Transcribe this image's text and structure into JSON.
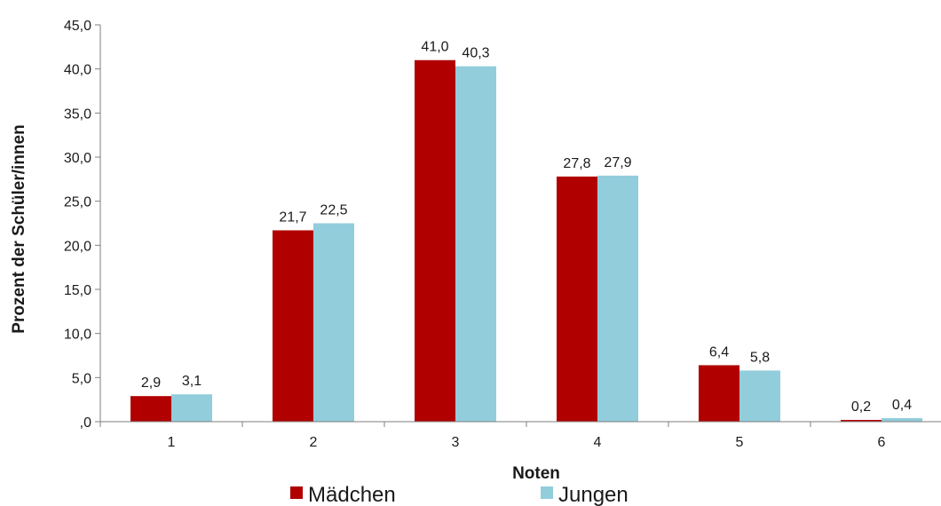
{
  "chart_data": {
    "type": "bar",
    "xlabel": "Noten",
    "ylabel": "Prozent der Schüler/innen",
    "categories": [
      "1",
      "2",
      "3",
      "4",
      "5",
      "6"
    ],
    "ylim": [
      0,
      45
    ],
    "ytick_labels": [
      ",0",
      "5,0",
      "10,0",
      "15,0",
      "20,0",
      "25,0",
      "30,0",
      "35,0",
      "40,0",
      "45,0"
    ],
    "legend_position": "bottom",
    "grid": false,
    "series": [
      {
        "name": "Mädchen",
        "color": "#B00000",
        "values": [
          2.9,
          21.7,
          41.0,
          27.8,
          6.4,
          0.2
        ],
        "labels": [
          "2,9",
          "21,7",
          "41,0",
          "27,8",
          "6,4",
          "0,2"
        ]
      },
      {
        "name": "Jungen",
        "color": "#92CDDC",
        "values": [
          3.1,
          22.5,
          40.3,
          27.9,
          5.8,
          0.4
        ],
        "labels": [
          "3,1",
          "22,5",
          "40,3",
          "27,9",
          "5,8",
          "0,4"
        ]
      }
    ]
  }
}
